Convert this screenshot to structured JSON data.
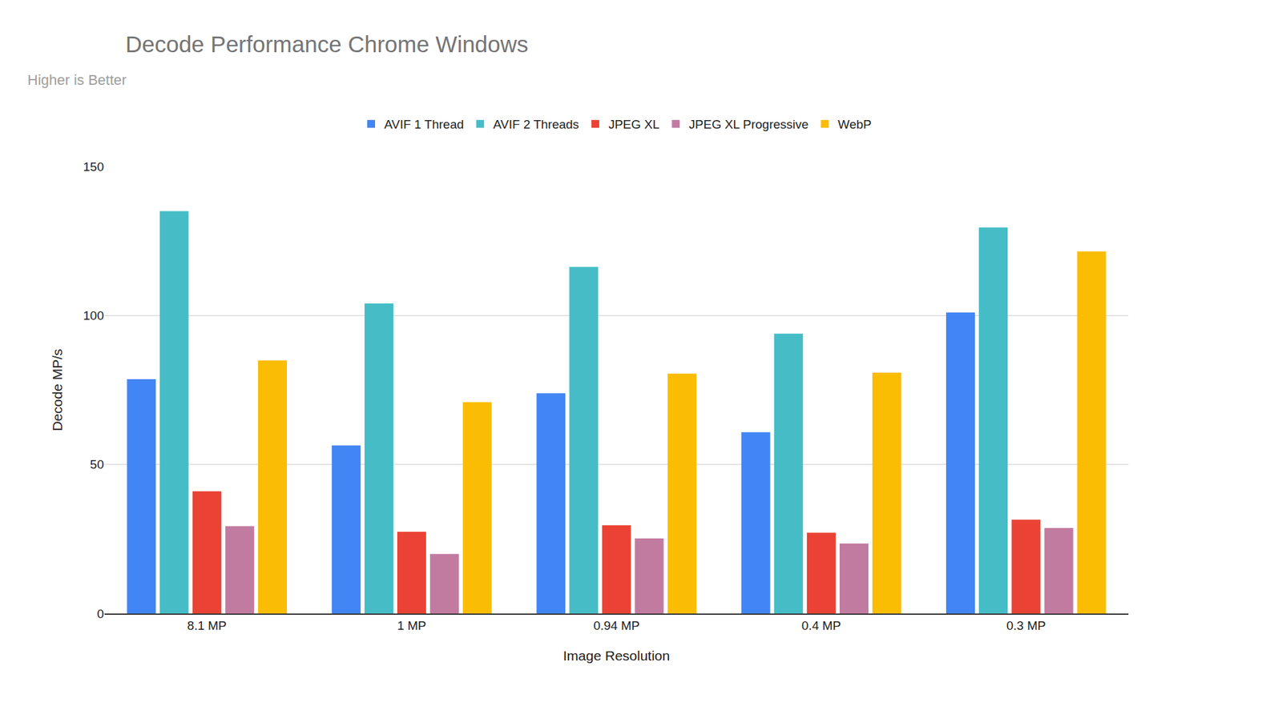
{
  "chart_data": {
    "type": "bar",
    "title": "Decode Performance Chrome Windows",
    "subtitle": "Higher is Better",
    "x_label": "Image Resolution",
    "y_label": "Decode MP/s",
    "categories": [
      "8.1 MP",
      "1 MP",
      "0.94 MP",
      "0.4 MP",
      "0.3 MP"
    ],
    "series": [
      {
        "name": "AVIF 1 Thread",
        "color": "#4285f4",
        "values": [
          78.6,
          56.4,
          73.9,
          60.8,
          101
        ]
      },
      {
        "name": "AVIF 2 Threads",
        "color": "#46bdc6",
        "values": [
          135,
          104,
          116.3,
          93.9,
          129.5
        ]
      },
      {
        "name": "JPEG XL",
        "color": "#ea4335",
        "values": [
          41,
          27.4,
          29.6,
          27.1,
          31.5
        ]
      },
      {
        "name": "JPEG XL Progressive",
        "color": "#c27ba0",
        "values": [
          29.3,
          20,
          25.2,
          23.5,
          28.7
        ]
      },
      {
        "name": "WebP",
        "color": "#fbbc04",
        "values": [
          84.9,
          70.9,
          80.5,
          80.8,
          121.5
        ]
      }
    ],
    "ylim": [
      0,
      150
    ],
    "yticks": [
      0,
      50,
      100,
      150
    ],
    "grid": true,
    "legend": "top"
  }
}
